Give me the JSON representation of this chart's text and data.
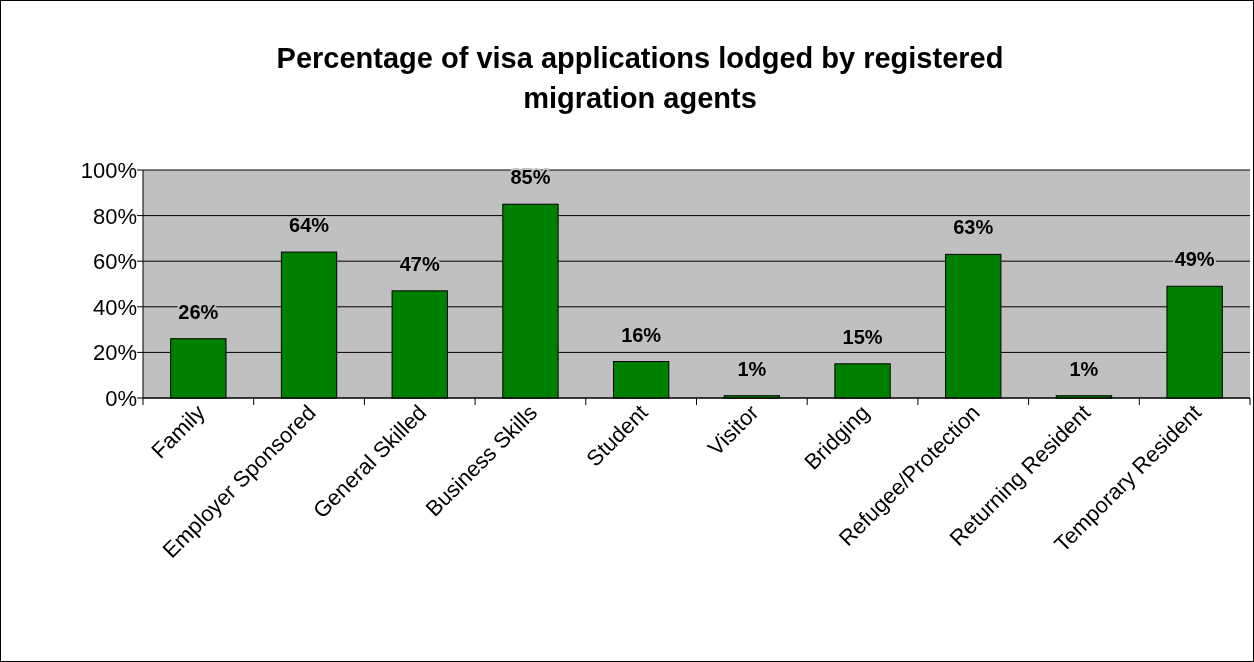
{
  "chart_data": {
    "type": "bar",
    "title": "Percentage of visa applications lodged by registered migration agents",
    "categories": [
      "Family",
      "Employer Sponsored",
      "General Skilled",
      "Business Skills",
      "Student",
      "Visitor",
      "Bridging",
      "Refugee/Protection",
      "Returning Resident",
      "Temporary Resident"
    ],
    "values": [
      26,
      64,
      47,
      85,
      16,
      1,
      15,
      63,
      1,
      49
    ],
    "value_labels": [
      "26%",
      "64%",
      "47%",
      "85%",
      "16%",
      "1%",
      "15%",
      "63%",
      "1%",
      "49%"
    ],
    "color": "#008000",
    "ylim": [
      0,
      100
    ],
    "yticks": [
      {
        "value": 0,
        "label": "0%"
      },
      {
        "value": 20,
        "label": "20%"
      },
      {
        "value": 40,
        "label": "40%"
      },
      {
        "value": 60,
        "label": "60%"
      },
      {
        "value": 80,
        "label": "80%"
      },
      {
        "value": 100,
        "label": "100%"
      }
    ],
    "grid": "y"
  }
}
